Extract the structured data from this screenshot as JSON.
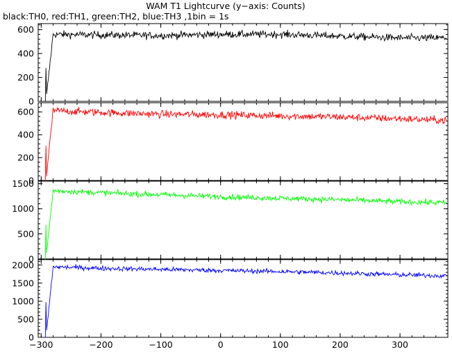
{
  "chart_data": {
    "type": "line",
    "title": "WAM T1 Lightcurve (y−axis: Counts)",
    "subtitle": "black:TH0, red:TH1, green:TH2, blue:TH3 ,1bin = 1s",
    "xlabel": "",
    "ylabel": "",
    "xlim": [
      -305,
      380
    ],
    "grid": false,
    "legend": "none",
    "x_ticks": [
      "−300",
      "−200",
      "−100",
      "0",
      "100",
      "200",
      "300"
    ],
    "x_tick_values": [
      -300,
      -200,
      -100,
      0,
      100,
      200,
      300
    ],
    "onset_x": -292,
    "panels": [
      {
        "name": "TH0",
        "color": "#000000",
        "ylim": [
          0,
          650
        ],
        "yticks": [
          0,
          200,
          400,
          600
        ],
        "ytick_labels": [
          "0",
          "200",
          "400",
          "600"
        ],
        "pre_level": 0,
        "level_start": 570,
        "level_end": 530,
        "noise_amplitude": 30,
        "series_x": [
          -292,
          -280,
          -200,
          -100,
          0,
          100,
          200,
          300,
          378
        ],
        "series_y": [
          0,
          560,
          555,
          550,
          560,
          560,
          545,
          530,
          530
        ]
      },
      {
        "name": "TH1",
        "color": "#ff0000",
        "ylim": [
          0,
          680
        ],
        "yticks": [
          0,
          200,
          400,
          600
        ],
        "ytick_labels": [
          "0",
          "200",
          "400",
          "600"
        ],
        "pre_level": 0,
        "level_start": 610,
        "level_end": 525,
        "noise_amplitude": 32,
        "series_x": [
          -292,
          -280,
          -200,
          -100,
          0,
          100,
          200,
          300,
          378
        ],
        "series_y": [
          0,
          610,
          595,
          580,
          575,
          565,
          555,
          540,
          525
        ]
      },
      {
        "name": "TH2",
        "color": "#00ff00",
        "ylim": [
          0,
          1550
        ],
        "yticks": [
          0,
          500,
          1000,
          1500
        ],
        "ytick_labels": [
          "0",
          "500",
          "1000",
          "1500"
        ],
        "pre_level": 0,
        "level_start": 1350,
        "level_end": 1120,
        "noise_amplitude": 55,
        "series_x": [
          -292,
          -280,
          -200,
          -100,
          0,
          100,
          200,
          300,
          378
        ],
        "series_y": [
          0,
          1360,
          1320,
          1280,
          1240,
          1210,
          1180,
          1140,
          1120
        ]
      },
      {
        "name": "TH3",
        "color": "#0000ff",
        "ylim": [
          0,
          2150
        ],
        "yticks": [
          0,
          500,
          1000,
          1500,
          2000
        ],
        "ytick_labels": [
          "0",
          "500",
          "1000",
          "1500",
          "2000"
        ],
        "pre_level": 0,
        "level_start": 1950,
        "level_end": 1700,
        "noise_amplitude": 65,
        "series_x": [
          -292,
          -280,
          -200,
          -100,
          0,
          100,
          200,
          300,
          378
        ],
        "series_y": [
          0,
          1950,
          1910,
          1880,
          1850,
          1820,
          1780,
          1730,
          1700
        ]
      }
    ]
  }
}
